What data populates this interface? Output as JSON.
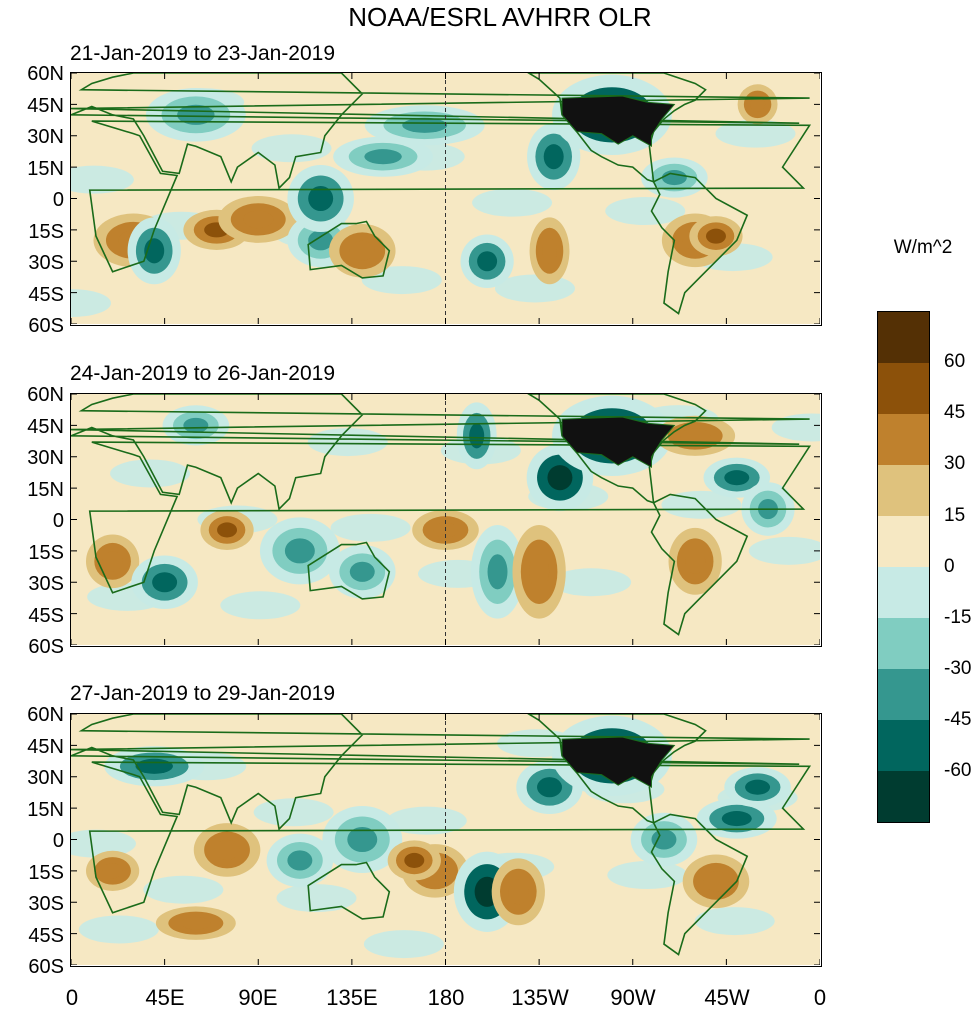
{
  "title": "NOAA/ESRL AVHRR OLR",
  "panels": [
    {
      "label": "21-Jan-2019 to 23-Jan-2019"
    },
    {
      "label": "24-Jan-2019 to 26-Jan-2019"
    },
    {
      "label": "27-Jan-2019 to 29-Jan-2019"
    }
  ],
  "lat_ticks": [
    "60N",
    "45N",
    "30N",
    "15N",
    "0",
    "15S",
    "30S",
    "45S",
    "60S"
  ],
  "lon_ticks": [
    "0",
    "45E",
    "90E",
    "135E",
    "180",
    "135W",
    "90W",
    "45W",
    "0"
  ],
  "colorbar": {
    "units": "W/m^2",
    "labels": [
      "60",
      "45",
      "30",
      "15",
      "0",
      "-15",
      "-30",
      "-45",
      "-60"
    ],
    "colors": [
      "#543005",
      "#8c510a",
      "#bf812d",
      "#dfc27d",
      "#f6e8c3",
      "#c7eae5",
      "#80cdc1",
      "#35978f",
      "#01665e",
      "#003c30"
    ]
  },
  "colors": {
    "coastline": "#1a6b1a",
    "dateline": "#333333"
  }
}
